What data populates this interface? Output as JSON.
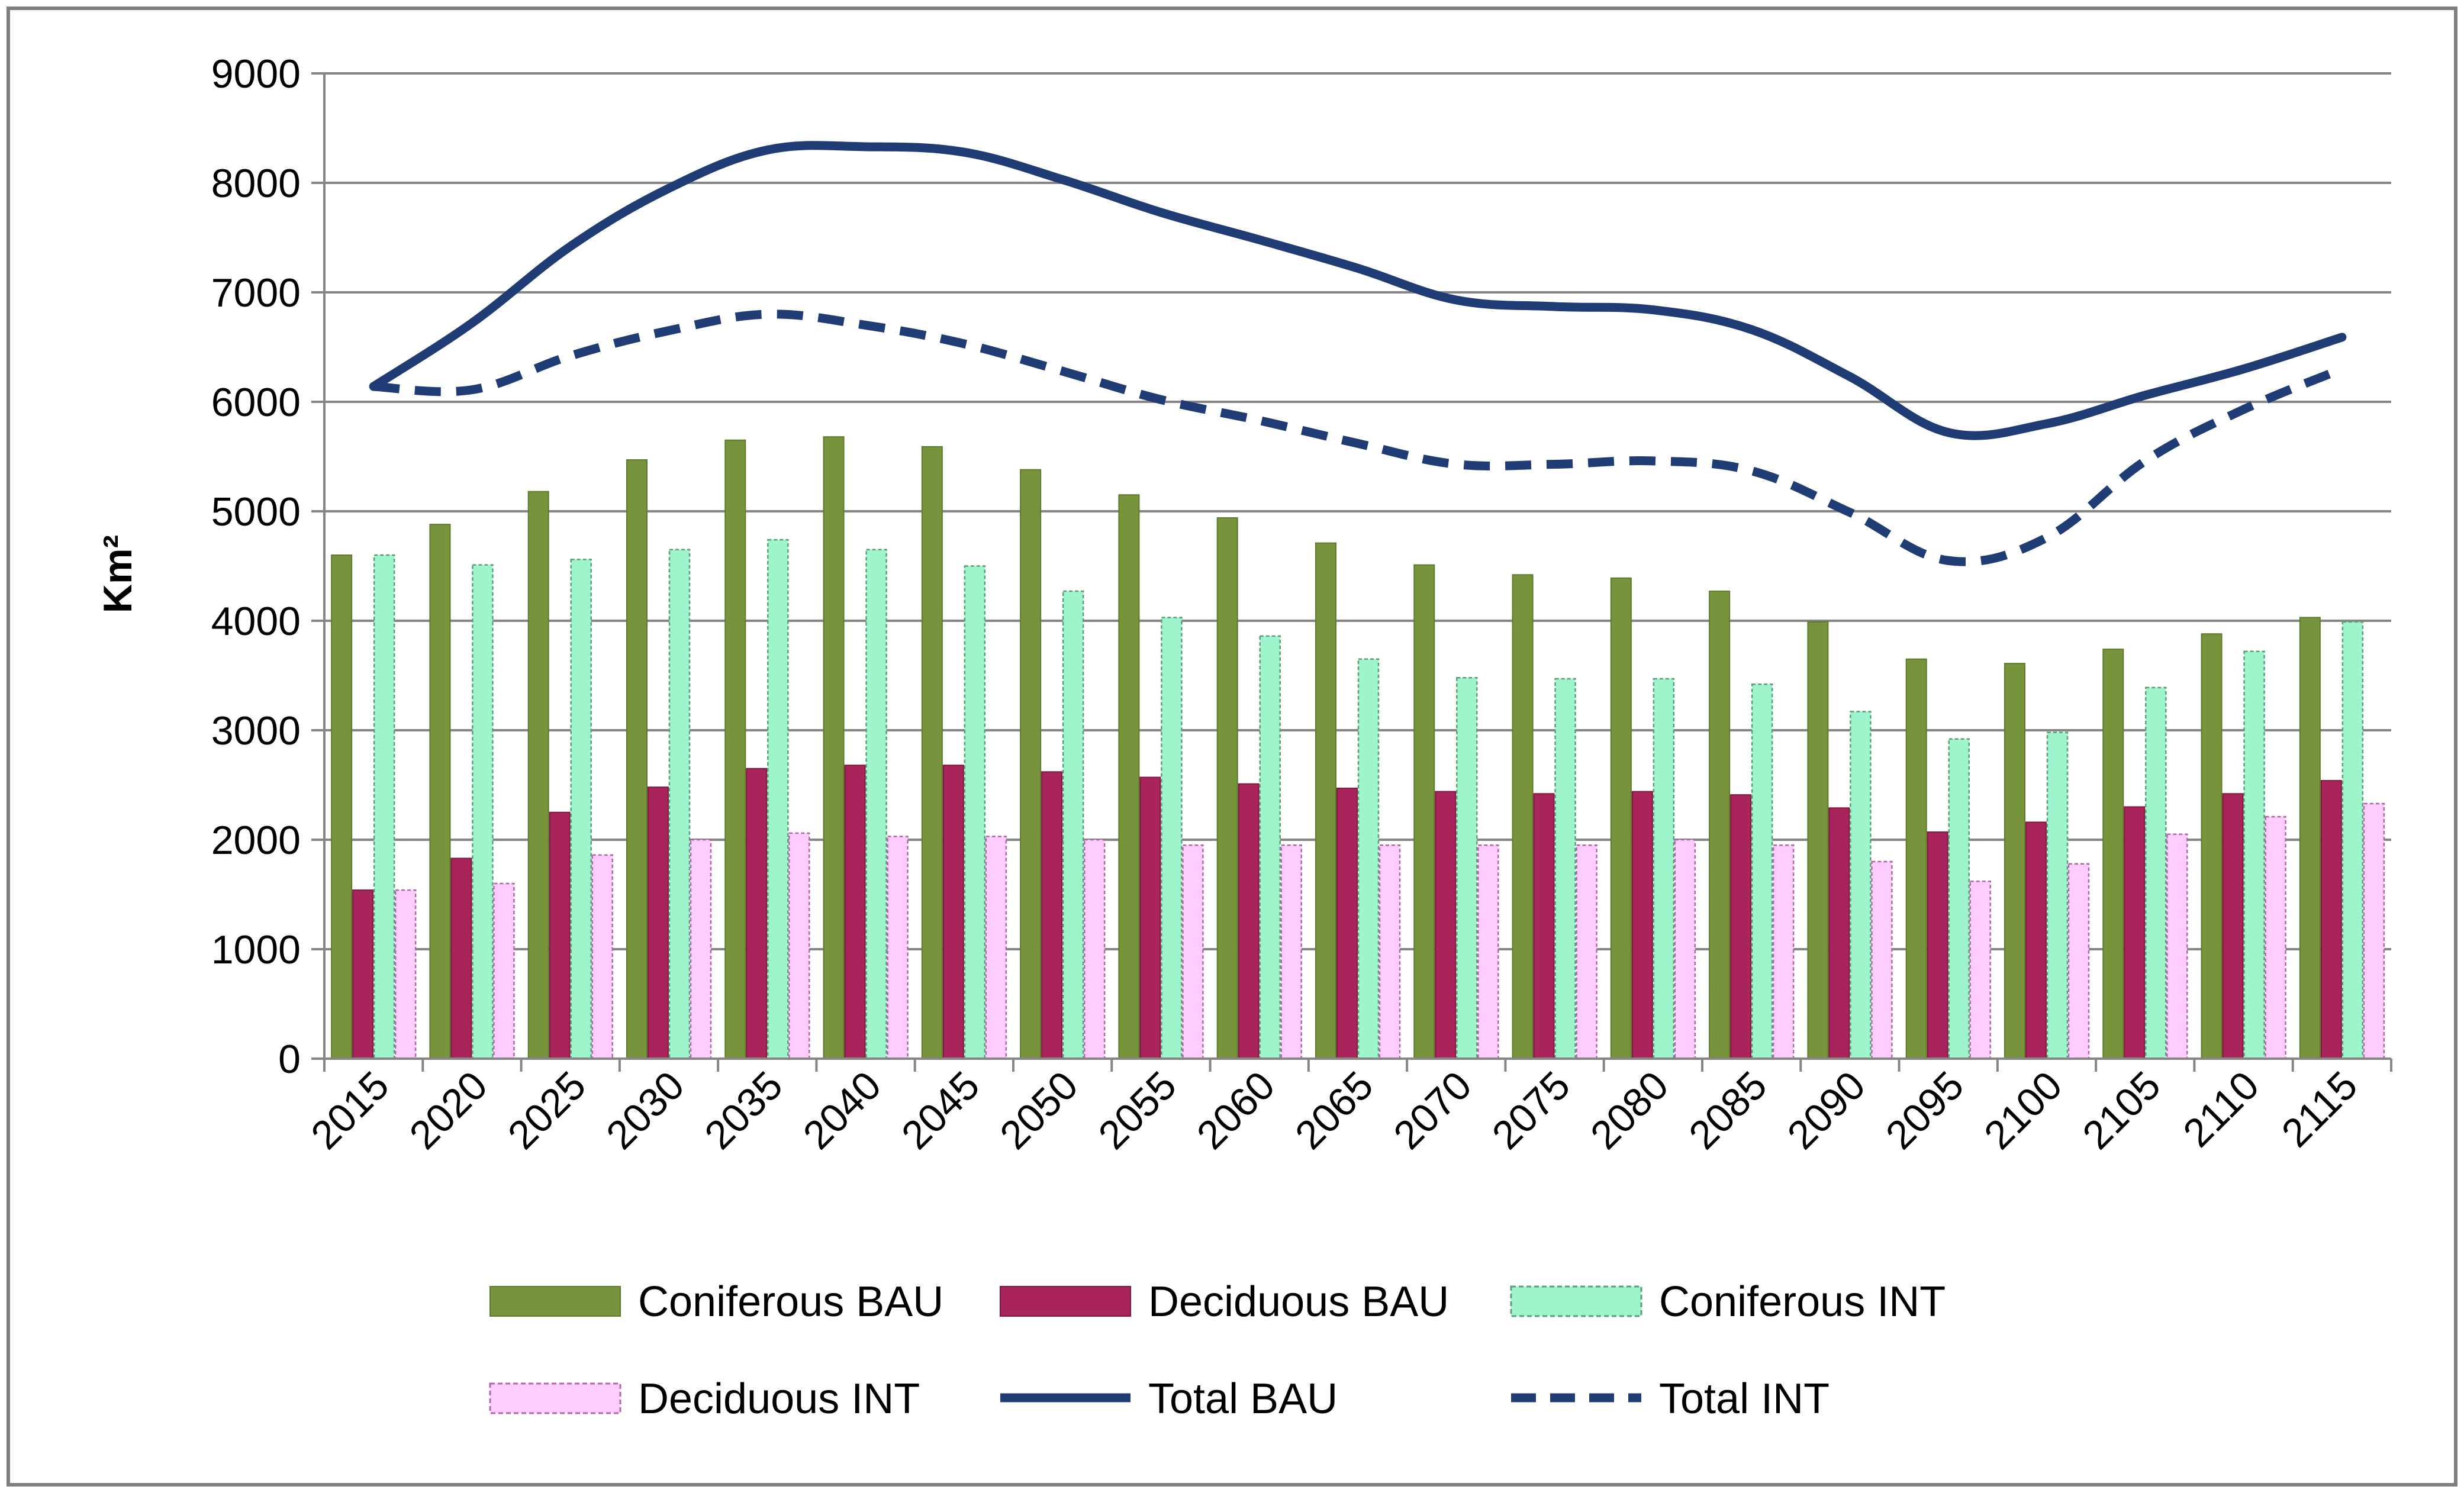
{
  "chart_data": {
    "type": "bar",
    "title": "",
    "xlabel": "",
    "ylabel": "Km²",
    "ylim": [
      0,
      9000
    ],
    "yticks": [
      0,
      1000,
      2000,
      3000,
      4000,
      5000,
      6000,
      7000,
      8000,
      9000
    ],
    "grid": true,
    "legend_position": "bottom",
    "categories": [
      "2015",
      "2020",
      "2025",
      "2030",
      "2035",
      "2040",
      "2045",
      "2050",
      "2055",
      "2060",
      "2065",
      "2070",
      "2075",
      "2080",
      "2085",
      "2090",
      "2095",
      "2100",
      "2105",
      "2110",
      "2115"
    ],
    "bar_series": [
      {
        "name": "Coniferous BAU",
        "color": "#77933c",
        "values": [
          4600,
          4880,
          5180,
          5470,
          5650,
          5680,
          5590,
          5380,
          5150,
          4940,
          4710,
          4510,
          4420,
          4390,
          4270,
          3990,
          3650,
          3610,
          3740,
          3880,
          4030
        ]
      },
      {
        "name": "Deciduous BAU",
        "color": "#a8245a",
        "values": [
          1540,
          1830,
          2250,
          2480,
          2650,
          2680,
          2680,
          2620,
          2570,
          2510,
          2470,
          2440,
          2420,
          2440,
          2410,
          2290,
          2070,
          2160,
          2300,
          2420,
          2540
        ]
      },
      {
        "name": "Coniferous INT",
        "color": "#9ef5cc",
        "values": [
          4600,
          4510,
          4560,
          4650,
          4740,
          4650,
          4500,
          4270,
          4030,
          3860,
          3650,
          3480,
          3470,
          3470,
          3420,
          3170,
          2920,
          2980,
          3390,
          3720,
          3990
        ]
      },
      {
        "name": "Deciduous INT",
        "color": "#ffccff",
        "values": [
          1540,
          1600,
          1860,
          2000,
          2060,
          2030,
          2030,
          2000,
          1950,
          1950,
          1950,
          1950,
          1950,
          2000,
          1950,
          1800,
          1620,
          1780,
          2050,
          2210,
          2330
        ]
      }
    ],
    "line_series": [
      {
        "name": "Total BAU",
        "color": "#1f3c74",
        "style": "solid",
        "values": [
          6140,
          6720,
          7420,
          7950,
          8300,
          8330,
          8280,
          8030,
          7730,
          7480,
          7220,
          6930,
          6870,
          6840,
          6660,
          6230,
          5720,
          5800,
          6060,
          6300,
          6590
        ]
      },
      {
        "name": "Total INT",
        "color": "#1f3c74",
        "style": "dashed",
        "values": [
          6140,
          6110,
          6420,
          6650,
          6800,
          6700,
          6530,
          6280,
          6020,
          5830,
          5620,
          5430,
          5430,
          5460,
          5370,
          4990,
          4550,
          4760,
          5460,
          5930,
          6300
        ]
      }
    ]
  }
}
